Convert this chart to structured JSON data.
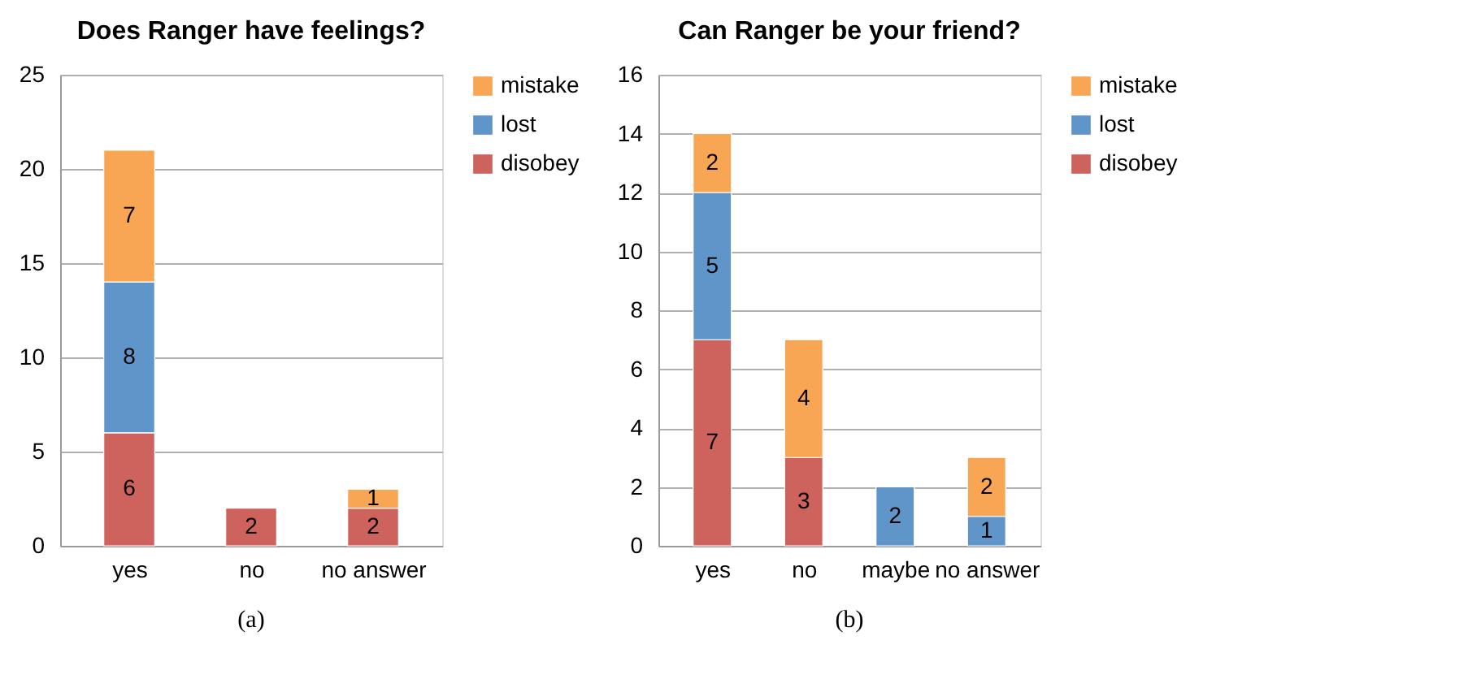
{
  "chart_data": [
    {
      "type": "bar",
      "stacked": true,
      "title": "Does Ranger have feelings?",
      "categories": [
        "yes",
        "no",
        "no answer"
      ],
      "series": [
        {
          "name": "disobey",
          "color": "#cd635c",
          "values": [
            6,
            2,
            2
          ]
        },
        {
          "name": "lost",
          "color": "#5f95c8",
          "values": [
            8,
            null,
            null
          ]
        },
        {
          "name": "mistake",
          "color": "#f8a654",
          "values": [
            7,
            null,
            1
          ]
        }
      ],
      "ylim": [
        0,
        25
      ],
      "yticks": [
        0,
        5,
        10,
        15,
        20,
        25
      ],
      "grid": "y",
      "legend": "right",
      "data_labels": true,
      "annotations": [
        "(a)"
      ]
    },
    {
      "type": "bar",
      "stacked": true,
      "title": "Can Ranger be your friend?",
      "categories": [
        "yes",
        "no",
        "maybe",
        "no answer"
      ],
      "series": [
        {
          "name": "disobey",
          "color": "#cd635c",
          "values": [
            7,
            3,
            null,
            null
          ]
        },
        {
          "name": "lost",
          "color": "#5f95c8",
          "values": [
            5,
            null,
            2,
            1
          ]
        },
        {
          "name": "mistake",
          "color": "#f8a654",
          "values": [
            2,
            4,
            null,
            2
          ]
        }
      ],
      "ylim": [
        0,
        16
      ],
      "yticks": [
        0,
        2,
        4,
        6,
        8,
        10,
        12,
        14,
        16
      ],
      "grid": "y",
      "legend": "right",
      "data_labels": true,
      "annotations": [
        "(b)"
      ]
    }
  ]
}
